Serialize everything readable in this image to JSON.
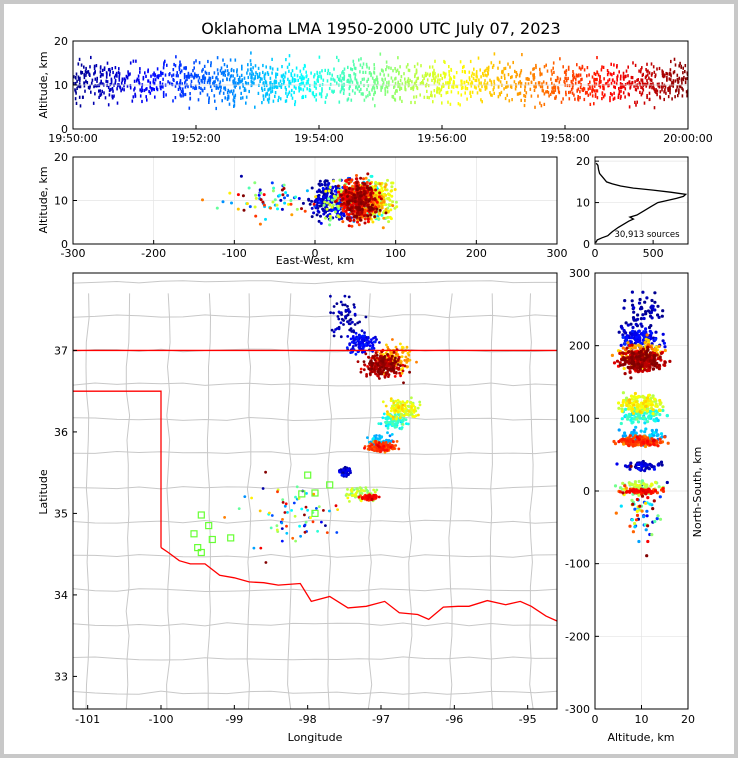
{
  "title": "Oklahoma LMA 1950-2000 UTC July 07, 2023",
  "chart_data": [
    {
      "panel": "time-height",
      "type": "scatter",
      "xlabel": "",
      "ylabel": "Altitude, km",
      "x_ticks": [
        "19:50:00",
        "19:52:00",
        "19:54:00",
        "19:56:00",
        "19:58:00",
        "20:00:00"
      ],
      "xlim": [
        "19:50:00",
        "20:00:00"
      ],
      "y_ticks": [
        0,
        10,
        20
      ],
      "ylim": [
        0,
        20
      ],
      "color_by": "time",
      "colormap": [
        "#00008f",
        "#0000ff",
        "#0080ff",
        "#00ffff",
        "#80ff80",
        "#ffff00",
        "#ff8000",
        "#ff0000",
        "#800000"
      ],
      "grid": true
    },
    {
      "panel": "east-west-altitude",
      "type": "scatter",
      "xlabel": "East-West, km",
      "ylabel": "Altitude, km",
      "x_ticks": [
        -300,
        -200,
        -100,
        0,
        100,
        200,
        300
      ],
      "xlim": [
        -300,
        300
      ],
      "y_ticks": [
        0,
        10,
        20
      ],
      "ylim": [
        0,
        20
      ],
      "grid": true
    },
    {
      "panel": "altitude-histogram",
      "type": "line",
      "x_ticks": [
        0,
        500
      ],
      "xlim": [
        0,
        800
      ],
      "y_ticks": [
        0,
        10,
        20
      ],
      "ylim": [
        0,
        21
      ],
      "annotation": "30,913 sources",
      "profile": [
        {
          "alt": 0.3,
          "count": 5
        },
        {
          "alt": 1,
          "count": 20
        },
        {
          "alt": 1.5,
          "count": 60
        },
        {
          "alt": 2,
          "count": 110
        },
        {
          "alt": 2.5,
          "count": 130
        },
        {
          "alt": 3,
          "count": 150
        },
        {
          "alt": 4,
          "count": 200
        },
        {
          "alt": 5,
          "count": 260
        },
        {
          "alt": 5.5,
          "count": 290
        },
        {
          "alt": 6,
          "count": 330
        },
        {
          "alt": 6.5,
          "count": 300
        },
        {
          "alt": 7,
          "count": 360
        },
        {
          "alt": 8,
          "count": 420
        },
        {
          "alt": 9,
          "count": 480
        },
        {
          "alt": 10,
          "count": 540
        },
        {
          "alt": 10.5,
          "count": 620
        },
        {
          "alt": 11,
          "count": 700
        },
        {
          "alt": 11.5,
          "count": 760
        },
        {
          "alt": 12,
          "count": 780
        },
        {
          "alt": 12.5,
          "count": 650
        },
        {
          "alt": 13,
          "count": 500
        },
        {
          "alt": 13.5,
          "count": 330
        },
        {
          "alt": 14,
          "count": 220
        },
        {
          "alt": 14.5,
          "count": 150
        },
        {
          "alt": 15,
          "count": 100
        },
        {
          "alt": 16,
          "count": 70
        },
        {
          "alt": 17,
          "count": 40
        },
        {
          "alt": 18,
          "count": 30
        },
        {
          "alt": 19,
          "count": 25
        },
        {
          "alt": 19.5,
          "count": 10
        }
      ]
    },
    {
      "panel": "plan-view-map",
      "type": "scatter",
      "xlabel": "Longitude",
      "ylabel": "Latitude",
      "x_ticks": [
        -101,
        -100,
        -99,
        -98,
        -97,
        -96,
        -95
      ],
      "xlim": [
        -101.2,
        -94.6
      ],
      "y_ticks": [
        33,
        34,
        35,
        36,
        37
      ],
      "ylim": [
        32.6,
        37.95
      ],
      "boundary_color": "#ff0000",
      "county_color": "#c8c8c8",
      "station_color": "#66ff33",
      "stations": [
        {
          "lon": -99.45,
          "lat": 34.98
        },
        {
          "lon": -99.35,
          "lat": 34.85
        },
        {
          "lon": -99.55,
          "lat": 34.75
        },
        {
          "lon": -99.3,
          "lat": 34.68
        },
        {
          "lon": -99.05,
          "lat": 34.7
        },
        {
          "lon": -99.5,
          "lat": 34.58
        },
        {
          "lon": -99.45,
          "lat": 34.52
        },
        {
          "lon": -98.0,
          "lat": 35.47
        },
        {
          "lon": -98.08,
          "lat": 35.24
        },
        {
          "lon": -97.9,
          "lat": 35.25
        },
        {
          "lon": -97.9,
          "lat": 35.0
        },
        {
          "lon": -97.7,
          "lat": 35.35
        }
      ]
    },
    {
      "panel": "altitude-north-south",
      "type": "scatter",
      "xlabel": "Altitude, km",
      "ylabel": "North-South, km",
      "x_ticks": [
        0,
        10,
        20
      ],
      "xlim": [
        0,
        20
      ],
      "y_ticks": [
        -300,
        -200,
        -100,
        0,
        100,
        200,
        300
      ],
      "ylim": [
        -300,
        300
      ],
      "grid": true
    }
  ]
}
